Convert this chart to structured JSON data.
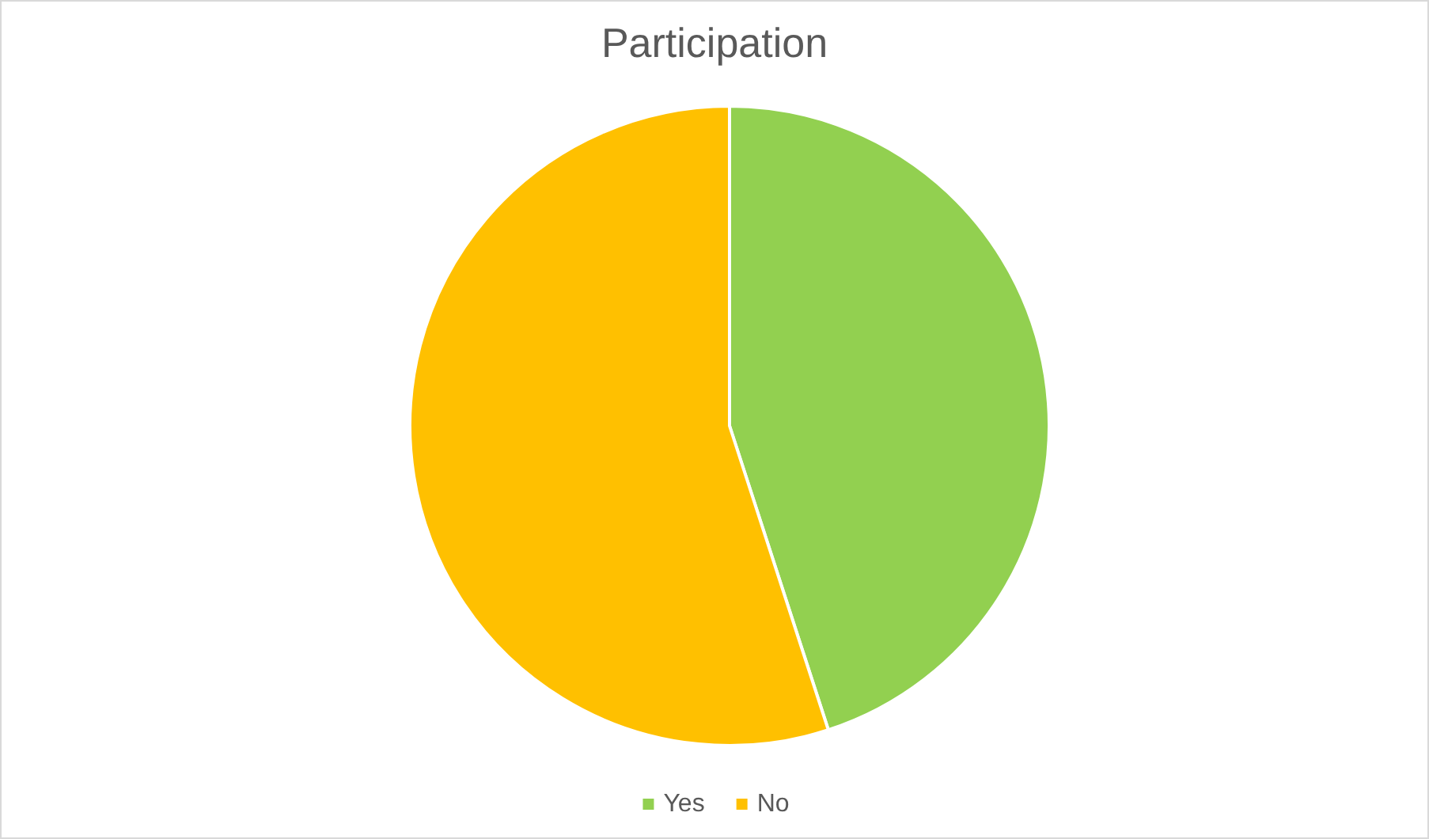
{
  "chart_data": {
    "type": "pie",
    "title": "Participation",
    "categories": [
      "Yes",
      "No"
    ],
    "values": [
      45,
      55
    ],
    "colors": [
      "#92d050",
      "#ffc000"
    ],
    "legend": "bottom"
  }
}
